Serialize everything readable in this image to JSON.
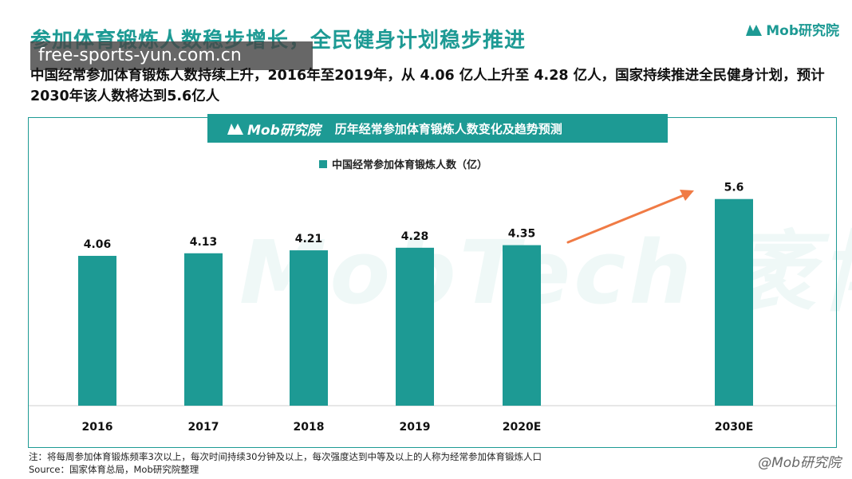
{
  "title": "参加体育锻炼人数稳步增长，全民健身计划稳步推进",
  "watermark_url": "free-sports-yun.com.cn",
  "brand": "Mob研究院",
  "subtitle": "中国经常参加体育锻炼人数持续上升，2016年至2019年，从 4.06 亿人上升至 4.28 亿人，国家持续推进全民健身计划，预计2030年该人数将达到5.6亿人",
  "chart_header_title": "历年经常参加体育锻炼人数变化及趋势预测",
  "background_watermark": "MobTech 袤博",
  "footnote_note": "注：将每周参加体育锻炼频率3次以上，每次时间持续30分钟及以上，每次强度达到中等及以上的人称为经常参加体育锻炼人口",
  "footnote_source": "Source：国家体育总局，Mob研究院整理",
  "corner_mark": "@Mob研究院",
  "colors": {
    "accent": "#1d9a94",
    "arrow": "#f07b45"
  },
  "chart_data": {
    "type": "bar",
    "categories": [
      "2016",
      "2017",
      "2018",
      "2019",
      "2020E",
      "2030E"
    ],
    "series": [
      {
        "name": "中国经常参加体育锻炼人数（亿）",
        "values": [
          4.06,
          4.13,
          4.21,
          4.28,
          4.35,
          5.6
        ]
      }
    ],
    "data_labels": [
      "4.06",
      "4.13",
      "4.21",
      "4.28",
      "4.35",
      "5.6"
    ],
    "annotations": [
      "trend arrow from 2020E to 2030E"
    ],
    "grid": false,
    "legend_position": "top-left"
  }
}
